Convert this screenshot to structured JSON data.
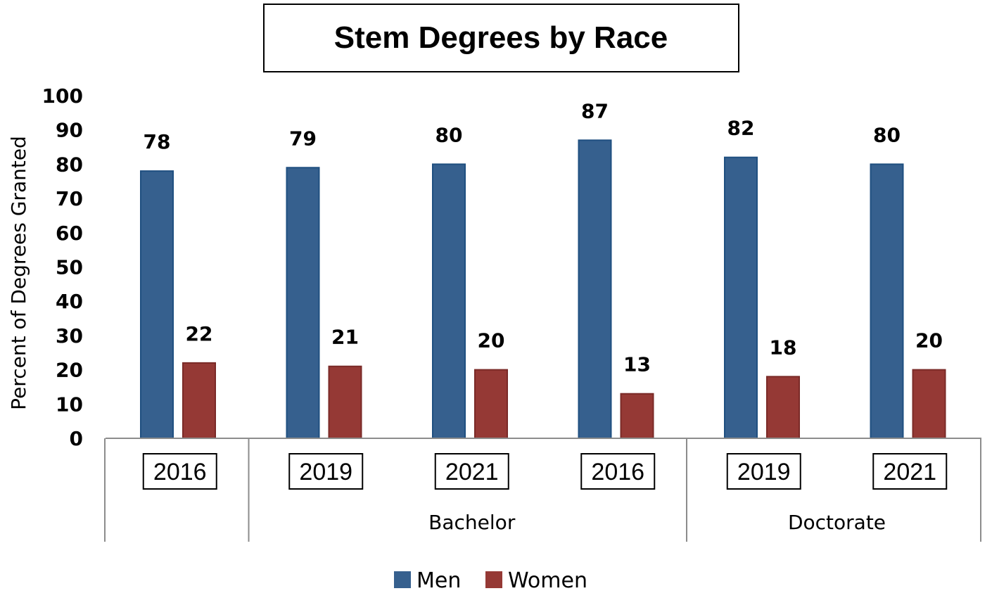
{
  "chart_data": {
    "type": "bar",
    "title": "Stem Degrees by Race",
    "ylabel": "Percent of Degrees Granted",
    "xlabel": "",
    "ylim": [
      0,
      100
    ],
    "yticks": [
      0,
      10,
      20,
      30,
      40,
      50,
      60,
      70,
      80,
      90,
      100
    ],
    "grid": false,
    "legend_position": "bottom",
    "categories": [
      "2016",
      "2019",
      "2021",
      "2016",
      "2019",
      "2021"
    ],
    "groups": [
      {
        "label": "",
        "categories": [
          "2016"
        ]
      },
      {
        "label": "Bachelor",
        "categories": [
          "2019",
          "2021",
          "2016"
        ]
      },
      {
        "label": "Doctorate",
        "categories": [
          "2019",
          "2021"
        ]
      }
    ],
    "series": [
      {
        "name": "Men",
        "color": "#36608E",
        "values": [
          78,
          79,
          80,
          87,
          82,
          80
        ]
      },
      {
        "name": "Women",
        "color": "#953935",
        "values": [
          22,
          21,
          20,
          13,
          18,
          20
        ]
      }
    ]
  }
}
